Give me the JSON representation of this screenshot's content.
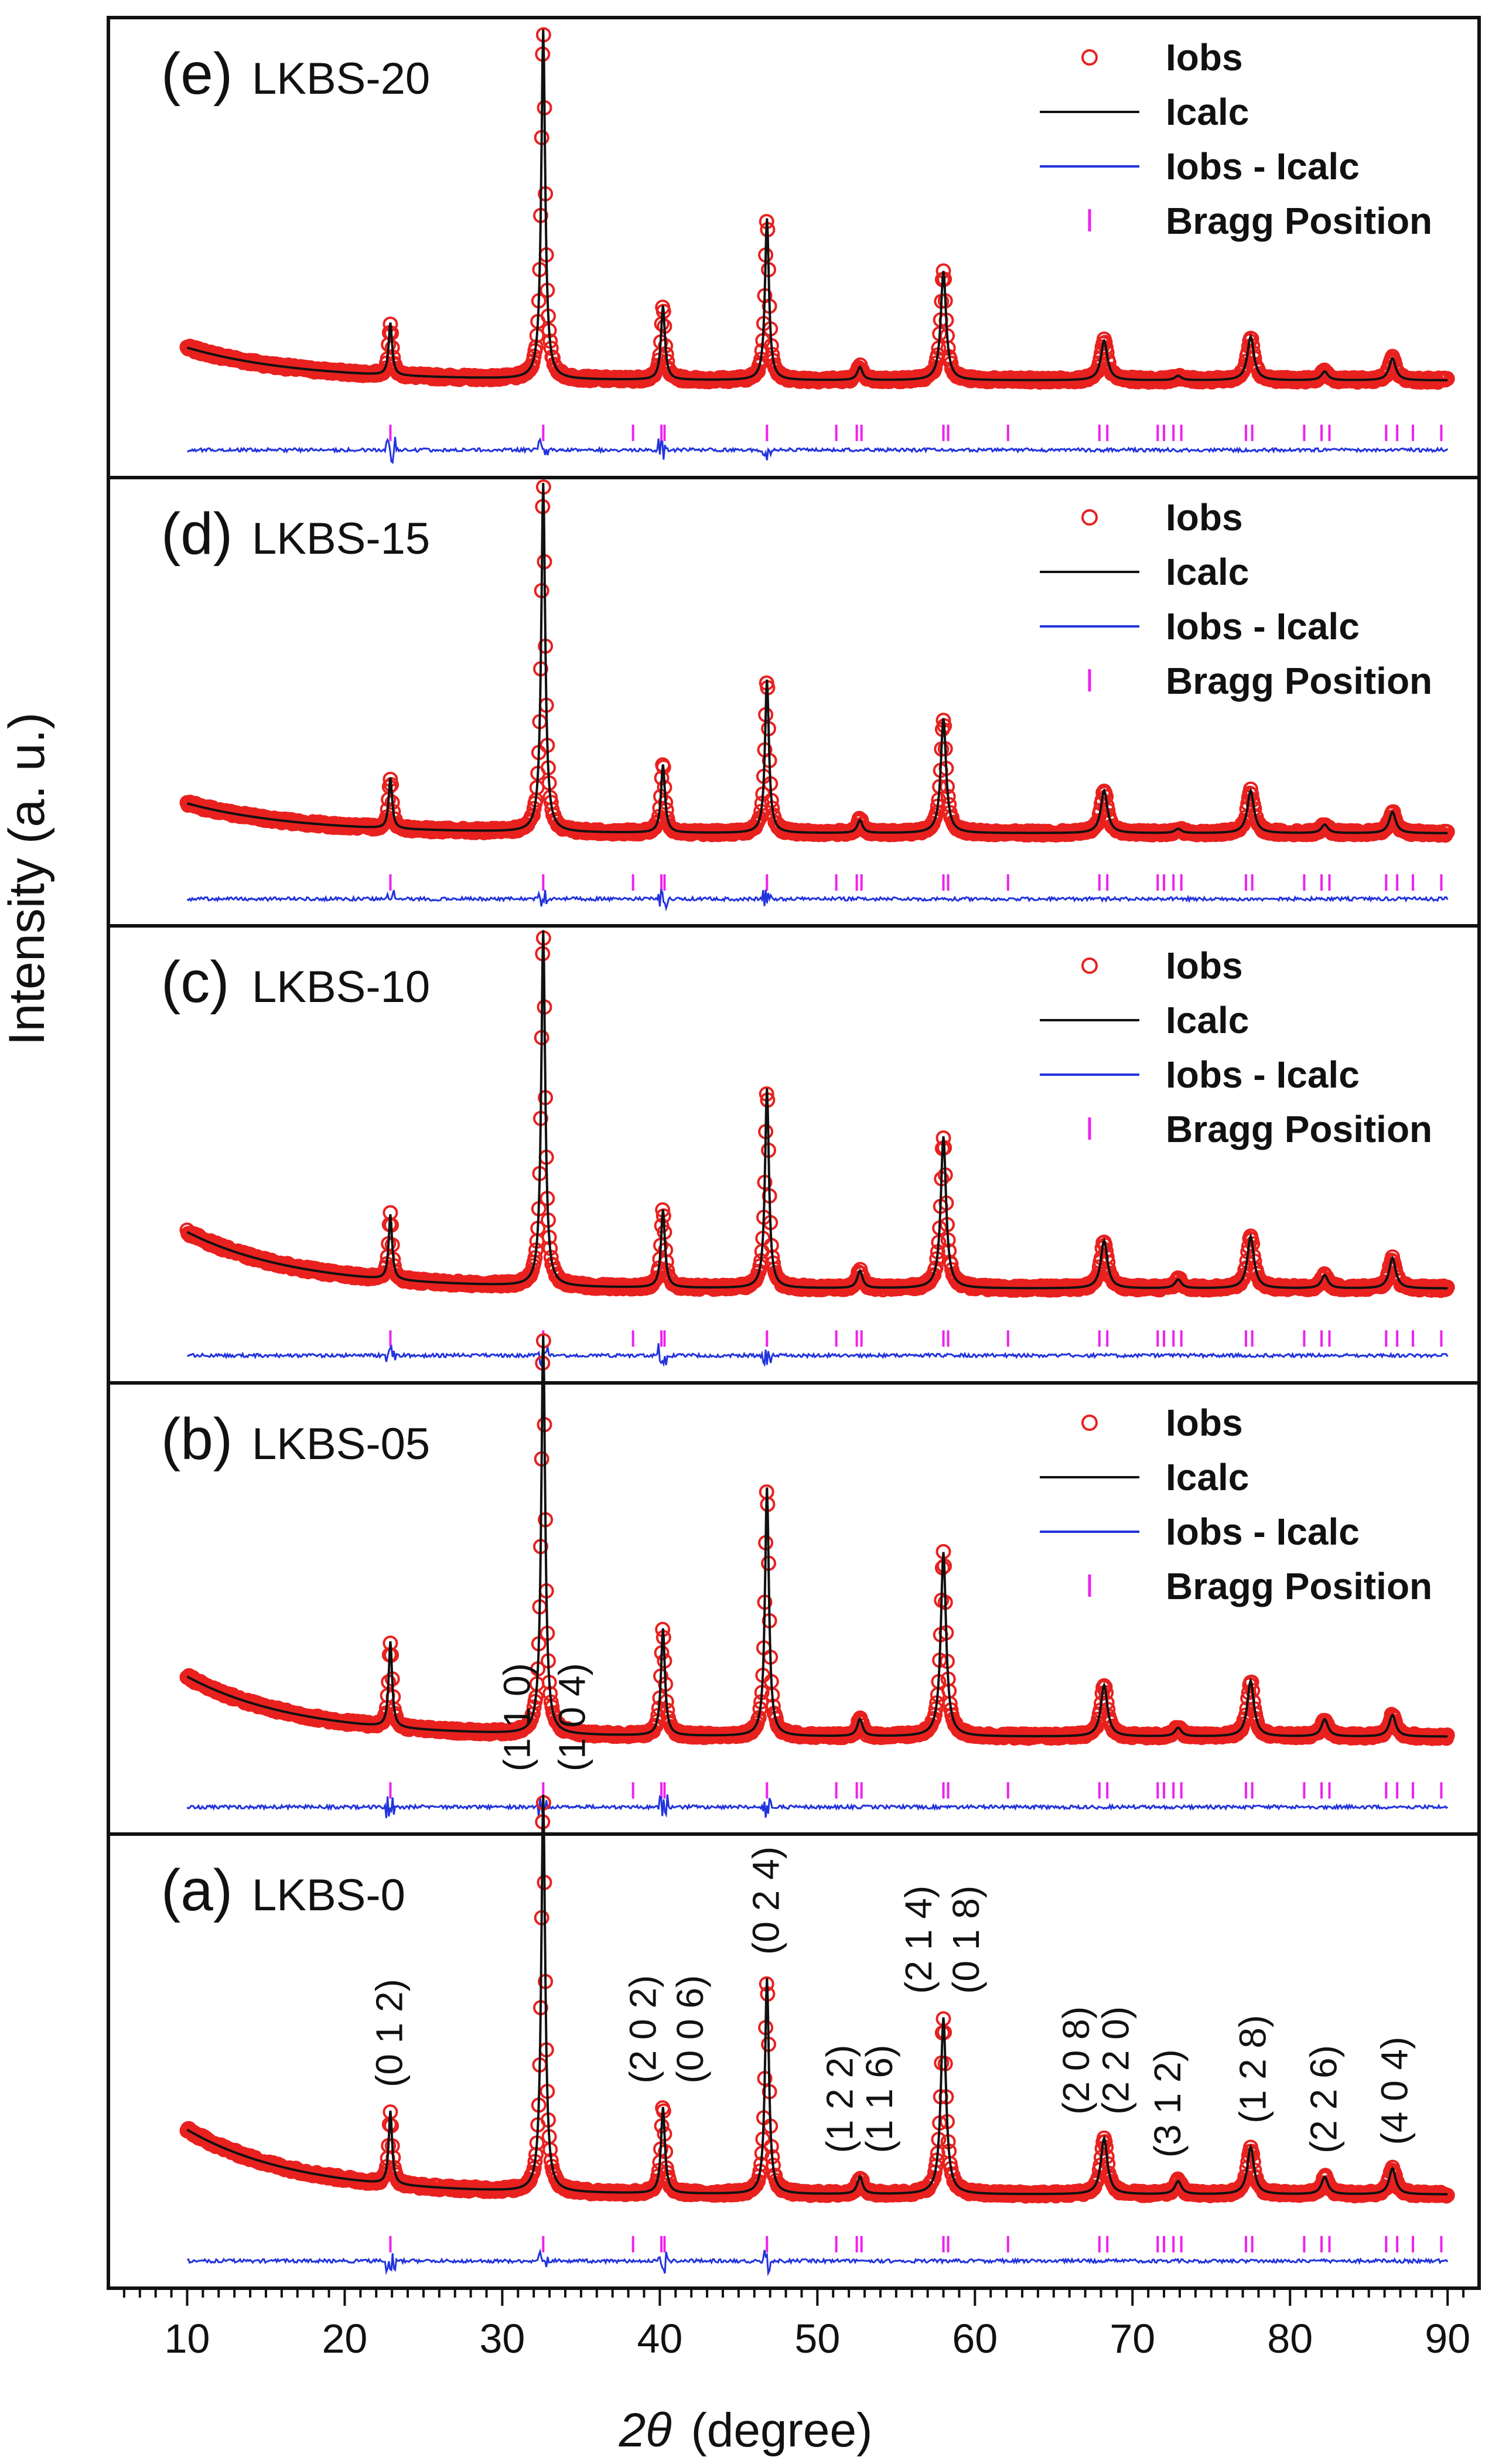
{
  "chart_data": {
    "type": "line",
    "ylabel": "Intensity (a. u.)",
    "xlabel_symbol": "2θ",
    "xlabel_unit": "(degree)",
    "xlim": [
      5,
      92
    ],
    "x_ticks": [
      10,
      20,
      30,
      40,
      50,
      60,
      70,
      80,
      90
    ],
    "x_tick_labels": [
      "10",
      "20",
      "30",
      "40",
      "50",
      "60",
      "70",
      "80",
      "90"
    ],
    "legend": {
      "iobs": "Iobs",
      "icalc": "Icalc",
      "diff": "Iobs - Icalc",
      "bragg": "Bragg Position"
    },
    "colors": {
      "iobs": "#e8211f",
      "icalc": "#111111",
      "diff": "#2233dd",
      "bragg": "#ee22ee"
    },
    "peak_positions": [
      22.9,
      32.6,
      40.2,
      46.8,
      52.7,
      58.0,
      68.2,
      72.9,
      77.5,
      82.2,
      86.5
    ],
    "bragg_positions": [
      22.9,
      32.6,
      38.3,
      40.1,
      40.3,
      46.8,
      51.2,
      52.5,
      52.8,
      58.0,
      58.3,
      62.1,
      67.9,
      68.4,
      71.6,
      72.0,
      72.6,
      73.1,
      77.2,
      77.6,
      80.9,
      82.0,
      82.5,
      86.1,
      86.8,
      87.8,
      89.6
    ],
    "series": [
      {
        "name": "LKBS-20",
        "letter": "(e)",
        "label": "LKBS-20",
        "background_start": 0.15,
        "background_end": 0.075,
        "peak_heights": [
          0.12,
          0.8,
          0.17,
          0.37,
          0.03,
          0.25,
          0.09,
          0.01,
          0.1,
          0.02,
          0.05
        ]
      },
      {
        "name": "LKBS-15",
        "letter": "(d)",
        "label": "LKBS-15",
        "background_start": 0.14,
        "background_end": 0.07,
        "peak_heights": [
          0.12,
          0.82,
          0.16,
          0.36,
          0.03,
          0.27,
          0.1,
          0.01,
          0.1,
          0.02,
          0.05
        ]
      },
      {
        "name": "LKBS-10",
        "letter": "(c)",
        "label": "LKBS-10",
        "background_start": 0.2,
        "background_end": 0.07,
        "peak_heights": [
          0.15,
          0.82,
          0.18,
          0.46,
          0.04,
          0.35,
          0.11,
          0.02,
          0.12,
          0.03,
          0.07
        ]
      },
      {
        "name": "LKBS-05",
        "letter": "(b)",
        "label": "LKBS-05",
        "background_start": 0.22,
        "background_end": 0.08,
        "peak_heights": [
          0.2,
          0.93,
          0.25,
          0.58,
          0.04,
          0.43,
          0.12,
          0.02,
          0.13,
          0.04,
          0.05
        ]
      },
      {
        "name": "LKBS-0",
        "letter": "(a)",
        "label": "LKBS-0",
        "background_start": 0.22,
        "background_end": 0.07,
        "peak_heights": [
          0.17,
          0.92,
          0.2,
          0.5,
          0.04,
          0.41,
          0.13,
          0.03,
          0.11,
          0.04,
          0.06
        ]
      }
    ],
    "hkl_labels": [
      {
        "x": 22.9,
        "text": "(0 1 2)"
      },
      {
        "x": 31.0,
        "text": "(1 1 0)"
      },
      {
        "x": 34.5,
        "text": "(1 0 4)"
      },
      {
        "x": 39.0,
        "text": "(2 0 2)"
      },
      {
        "x": 42.0,
        "text": "(0 0 6)"
      },
      {
        "x": 46.8,
        "text": "(0 2 4)"
      },
      {
        "x": 51.5,
        "text": "(1 2 2)"
      },
      {
        "x": 54.0,
        "text": "(1 1 6)"
      },
      {
        "x": 56.5,
        "text": "(2 1 4)"
      },
      {
        "x": 59.5,
        "text": "(0 1 8)"
      },
      {
        "x": 66.5,
        "text": "(2 0 8)"
      },
      {
        "x": 69.0,
        "text": "(2 2 0)"
      },
      {
        "x": 72.3,
        "text": "(3 1 2)"
      },
      {
        "x": 77.7,
        "text": "(1 2 8)"
      },
      {
        "x": 82.2,
        "text": "(2 2 6)"
      },
      {
        "x": 86.7,
        "text": "(4 0 4)"
      }
    ]
  }
}
